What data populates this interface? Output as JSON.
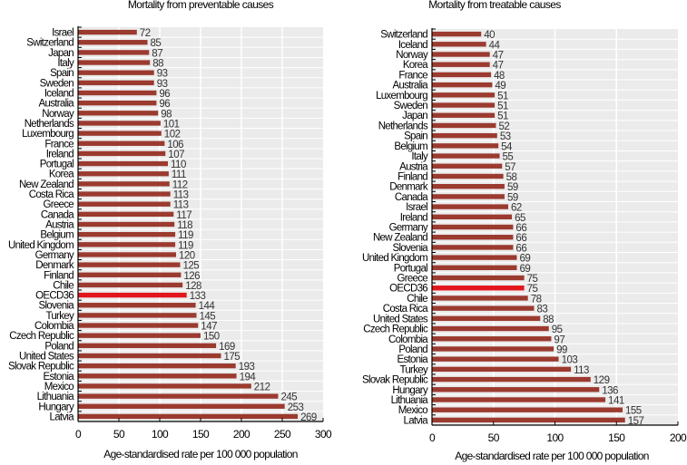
{
  "colors": {
    "bar": "#9b3a2f",
    "highlight": "#e3151c",
    "plot_bg": "#ebebeb",
    "gridline": "#ffffff",
    "axis": "#000000"
  },
  "chart_data": [
    {
      "type": "bar",
      "orientation": "horizontal",
      "title": "Mortality from preventable causes",
      "xlabel": "Age-standardised rate per 100 000 population",
      "ylabel": "",
      "xlim": [
        0,
        300
      ],
      "xticks": [
        0,
        50,
        100,
        150,
        200,
        250,
        300
      ],
      "grid": true,
      "highlight": "OECD36",
      "categories": [
        "Israel",
        "Switzerland",
        "Japan",
        "Italy",
        "Spain",
        "Sweden",
        "Iceland",
        "Australia",
        "Norway",
        "Netherlands",
        "Luxembourg",
        "France",
        "Ireland",
        "Portugal",
        "Korea",
        "New Zealand",
        "Costa Rica",
        "Greece",
        "Canada",
        "Austria",
        "Belgium",
        "United Kingdom",
        "Germany",
        "Denmark",
        "Finland",
        "Chile",
        "OECD36",
        "Slovenia",
        "Turkey",
        "Colombia",
        "Czech Republic",
        "Poland",
        "United States",
        "Slovak Republic",
        "Estonia",
        "Mexico",
        "Lithuania",
        "Hungary",
        "Latvia"
      ],
      "values": [
        72,
        85,
        87,
        88,
        93,
        93,
        96,
        96,
        98,
        101,
        102,
        106,
        107,
        110,
        111,
        112,
        113,
        113,
        117,
        118,
        119,
        119,
        120,
        125,
        126,
        128,
        133,
        144,
        145,
        147,
        150,
        169,
        175,
        193,
        194,
        212,
        245,
        253,
        269
      ]
    },
    {
      "type": "bar",
      "orientation": "horizontal",
      "title": "Mortality from treatable causes",
      "xlabel": "Age-standardised rate per 100 000 population",
      "ylabel": "",
      "xlim": [
        0,
        200
      ],
      "xticks": [
        0,
        50,
        100,
        150,
        200
      ],
      "grid": true,
      "highlight": "OECD36",
      "categories": [
        "Switzerland",
        "Iceland",
        "Norway",
        "Korea",
        "France",
        "Australia",
        "Luxembourg",
        "Sweden",
        "Japan",
        "Netherlands",
        "Spain",
        "Belgium",
        "Italy",
        "Austria",
        "Finland",
        "Denmark",
        "Canada",
        "Israel",
        "Ireland",
        "Germany",
        "New Zealand",
        "Slovenia",
        "United Kingdom",
        "Portugal",
        "Greece",
        "OECD36",
        "Chile",
        "Costa Rica",
        "United States",
        "Czech Republic",
        "Colombia",
        "Poland",
        "Estonia",
        "Turkey",
        "Slovak Republic",
        "Hungary",
        "Lithuania",
        "Mexico",
        "Latvia"
      ],
      "values": [
        40,
        44,
        47,
        47,
        48,
        49,
        51,
        51,
        51,
        52,
        53,
        54,
        55,
        57,
        58,
        59,
        59,
        62,
        65,
        66,
        66,
        66,
        69,
        69,
        75,
        75,
        78,
        83,
        88,
        95,
        97,
        99,
        103,
        113,
        129,
        136,
        141,
        155,
        157
      ]
    }
  ]
}
